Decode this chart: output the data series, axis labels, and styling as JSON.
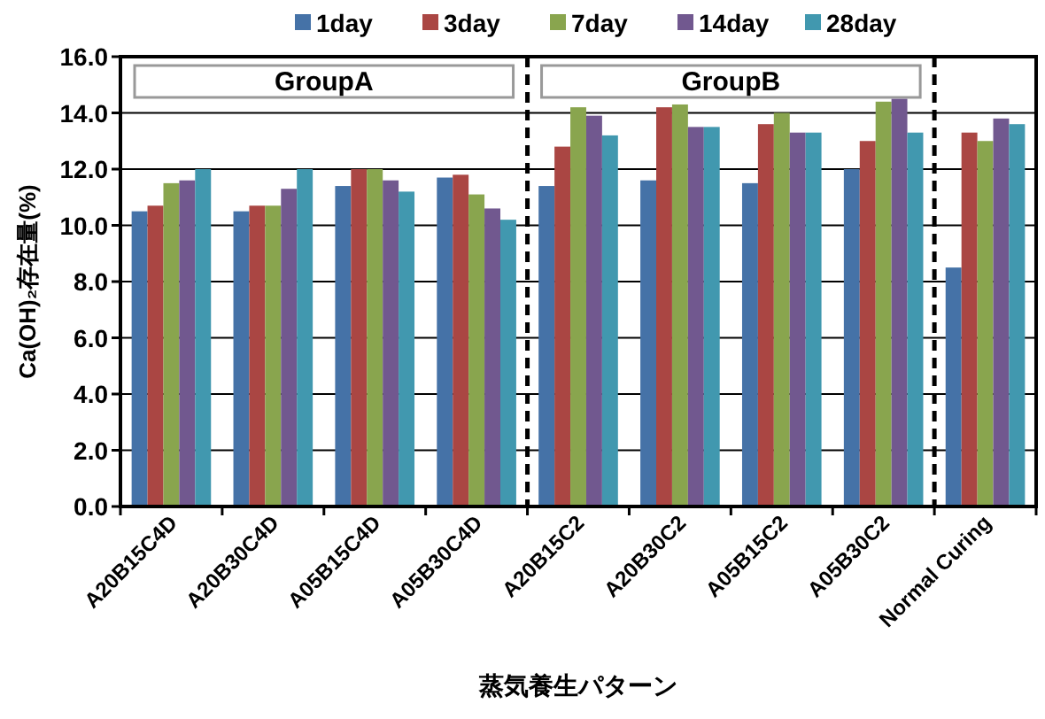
{
  "chart_data": {
    "type": "bar",
    "xlabel": "蒸気養生パターン",
    "ylabel": "Ca(OH)₂存在量(%)",
    "categories": [
      "A20B15C4D",
      "A20B30C4D",
      "A05B15C4D",
      "A05B30C4D",
      "A20B15C2",
      "A20B30C2",
      "A05B15C2",
      "A05B30C2",
      "Normal Curing"
    ],
    "series": [
      {
        "name": "1day",
        "color": "#4572a7",
        "values": [
          10.5,
          10.5,
          11.4,
          11.7,
          11.4,
          11.6,
          11.5,
          12.0,
          8.5
        ]
      },
      {
        "name": "3day",
        "color": "#aa4643",
        "values": [
          10.7,
          10.7,
          12.0,
          11.8,
          12.8,
          14.2,
          13.6,
          13.0,
          13.3
        ]
      },
      {
        "name": "7day",
        "color": "#89a54e",
        "values": [
          11.5,
          10.7,
          12.0,
          11.1,
          14.2,
          14.3,
          14.0,
          14.4,
          13.0
        ]
      },
      {
        "name": "14day",
        "color": "#71588f",
        "values": [
          11.6,
          11.3,
          11.6,
          10.6,
          13.9,
          13.5,
          13.3,
          14.5,
          13.8
        ]
      },
      {
        "name": "28day",
        "color": "#4198af",
        "values": [
          12.0,
          12.0,
          11.2,
          10.2,
          13.2,
          13.5,
          13.3,
          13.3,
          13.6
        ]
      }
    ],
    "ylim": [
      0,
      16
    ],
    "yticks": [
      {
        "value": 0,
        "label": "0.0"
      },
      {
        "value": 2,
        "label": "2.0"
      },
      {
        "value": 4,
        "label": "4.0"
      },
      {
        "value": 6,
        "label": "6.0"
      },
      {
        "value": 8,
        "label": "8.0"
      },
      {
        "value": 10,
        "label": "10.0"
      },
      {
        "value": 12,
        "label": "12.0"
      },
      {
        "value": 14,
        "label": "14.0"
      },
      {
        "value": 16,
        "label": "16.0"
      }
    ],
    "grid": "y",
    "legend": "top",
    "annotations": [
      "GroupA",
      "GroupB"
    ]
  }
}
